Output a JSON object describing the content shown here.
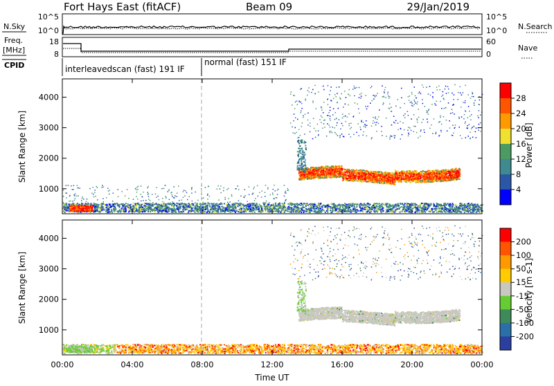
{
  "header": {
    "station": "Fort Hays East (fitACF)",
    "beam": "Beam 09",
    "date": "29/Jan/2019"
  },
  "top_panels": {
    "nsky_label": "N.Sky",
    "nsearch_label": "N.Search",
    "nsky_ticks": [
      "10^5",
      "10^0"
    ],
    "nsearch_ticks": [
      "10^5",
      "10^0"
    ],
    "freq_label": "Freq.",
    "freq_unit": "[MHz]",
    "freq_ticks": [
      "18",
      "8"
    ],
    "nave_label": "Nave",
    "nave_ticks": [
      "60",
      "0"
    ],
    "cpid_label": "CPID",
    "cpid_segments": [
      "interleavedscan (fast) 191 IF",
      "normal (fast) 151 IF"
    ]
  },
  "colors": {
    "power": [
      "#0000ff",
      "#2a57a8",
      "#3e8a8f",
      "#4c9b63",
      "#f0e030",
      "#ff9900",
      "#ff5500",
      "#ff0000"
    ],
    "velocity": [
      "#2a3fa0",
      "#2a6fa8",
      "#3f8a5a",
      "#66cc33",
      "#c8c8c0",
      "#ffcc00",
      "#ff9900",
      "#ff5500",
      "#ff0000"
    ]
  },
  "chart_data": [
    {
      "type": "heatmap",
      "title": "",
      "ylabel": "Slant Range [km]",
      "xlabel": "",
      "x_ticks": [
        "00:00",
        "04:00",
        "08:00",
        "12:00",
        "16:00",
        "20:00",
        "00:00"
      ],
      "xlim": [
        0,
        24
      ],
      "ylim": [
        180,
        4600
      ],
      "y_ticks": [
        1000,
        2000,
        3000,
        4000
      ],
      "colorbar": {
        "label": "Power [dB]",
        "ticks": [
          "28",
          "24",
          "20",
          "16",
          "12",
          "8",
          "4"
        ],
        "range": [
          0,
          32
        ]
      }
    },
    {
      "type": "heatmap",
      "title": "",
      "ylabel": "Slant Range [km]",
      "xlabel": "Time UT",
      "x_ticks": [
        "00:00",
        "04:00",
        "08:00",
        "12:00",
        "16:00",
        "20:00",
        "00:00"
      ],
      "xlim": [
        0,
        24
      ],
      "ylim": [
        180,
        4600
      ],
      "y_ticks": [
        1000,
        2000,
        3000,
        4000
      ],
      "colorbar": {
        "label": "Velocity [m s-1]",
        "ticks": [
          "200",
          "100",
          "50",
          "15",
          "-15",
          "-50",
          "-100",
          "-200"
        ]
      }
    }
  ]
}
